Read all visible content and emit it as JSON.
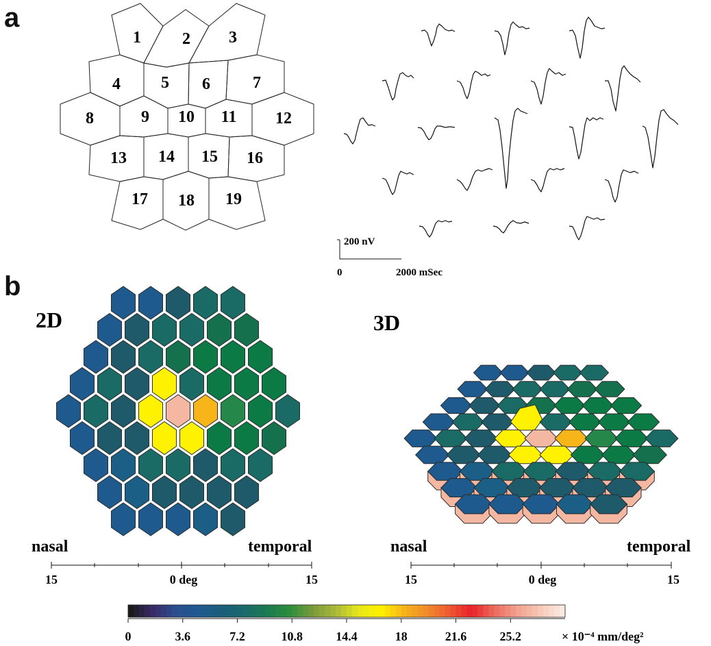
{
  "panel_labels": {
    "a": "a",
    "b": "b"
  },
  "hex_layout_numbers": [
    "1",
    "2",
    "3",
    "4",
    "5",
    "6",
    "7",
    "8",
    "9",
    "10",
    "11",
    "12",
    "13",
    "14",
    "15",
    "16",
    "17",
    "18",
    "19"
  ],
  "scale_bar": {
    "amplitude": "200 nV",
    "time_start": "0",
    "time_end": "2000 mSec"
  },
  "maps": {
    "map2d": {
      "title": "2D",
      "left_label": "nasal",
      "right_label": "temporal",
      "axis_left": "15",
      "axis_center": "0 deg",
      "axis_right": "15"
    },
    "map3d": {
      "title": "3D",
      "left_label": "nasal",
      "right_label": "temporal",
      "axis_left": "15",
      "axis_center": "0 deg",
      "axis_right": "15"
    }
  },
  "colorbar": {
    "ticks": [
      "0",
      "3.6",
      "7.2",
      "10.8",
      "14.4",
      "18",
      "21.6",
      "25.2"
    ],
    "unit": "× 10⁻⁴ mm/deg²",
    "range": [
      0,
      28.8
    ],
    "stops": [
      "#1a1a1a",
      "#3a2b6a",
      "#2a4f90",
      "#1f5a8f",
      "#1b5d7a",
      "#1a6a6a",
      "#1a7a50",
      "#2c8f3c",
      "#7a9a3a",
      "#a8b83a",
      "#e6e61a",
      "#fff200",
      "#f7b51a",
      "#f08c2a",
      "#ee5a32",
      "#e82128",
      "#ec6b5e",
      "#f2a08e",
      "#f7c8b8",
      "#fbe8df"
    ]
  },
  "colors": {
    "blue": "#1e5a8e",
    "dblue": "#1b5f86",
    "slate": "#1f5a6b",
    "teal": "#1a6a66",
    "tgreen": "#15704e",
    "green": "#0b7a45",
    "lgreen": "#26874a",
    "yellow": "#fff200",
    "orange": "#f7b51a",
    "peach": "#f4b8a2"
  },
  "map_rows": [
    [
      "blue",
      "blue",
      "slate",
      "teal",
      "teal"
    ],
    [
      "blue",
      "slate",
      "teal",
      "teal",
      "tgreen",
      "tgreen"
    ],
    [
      "blue",
      "slate",
      "teal",
      "tgreen",
      "green",
      "green",
      "green"
    ],
    [
      "blue",
      "teal",
      "slate",
      "yellow",
      "teal",
      "green",
      "green",
      "green"
    ],
    [
      "blue",
      "teal",
      "slate",
      "yellow",
      "peach",
      "orange",
      "lgreen",
      "green",
      "teal"
    ],
    [
      "blue",
      "slate",
      "slate",
      "yellow",
      "yellow",
      "green",
      "green",
      "tgreen"
    ],
    [
      "blue",
      "dblue",
      "teal",
      "teal",
      "slate",
      "teal",
      "teal"
    ],
    [
      "blue",
      "dblue",
      "slate",
      "slate",
      "slate",
      "slate"
    ],
    [
      "blue",
      "blue",
      "blue",
      "dblue",
      "slate"
    ]
  ]
}
